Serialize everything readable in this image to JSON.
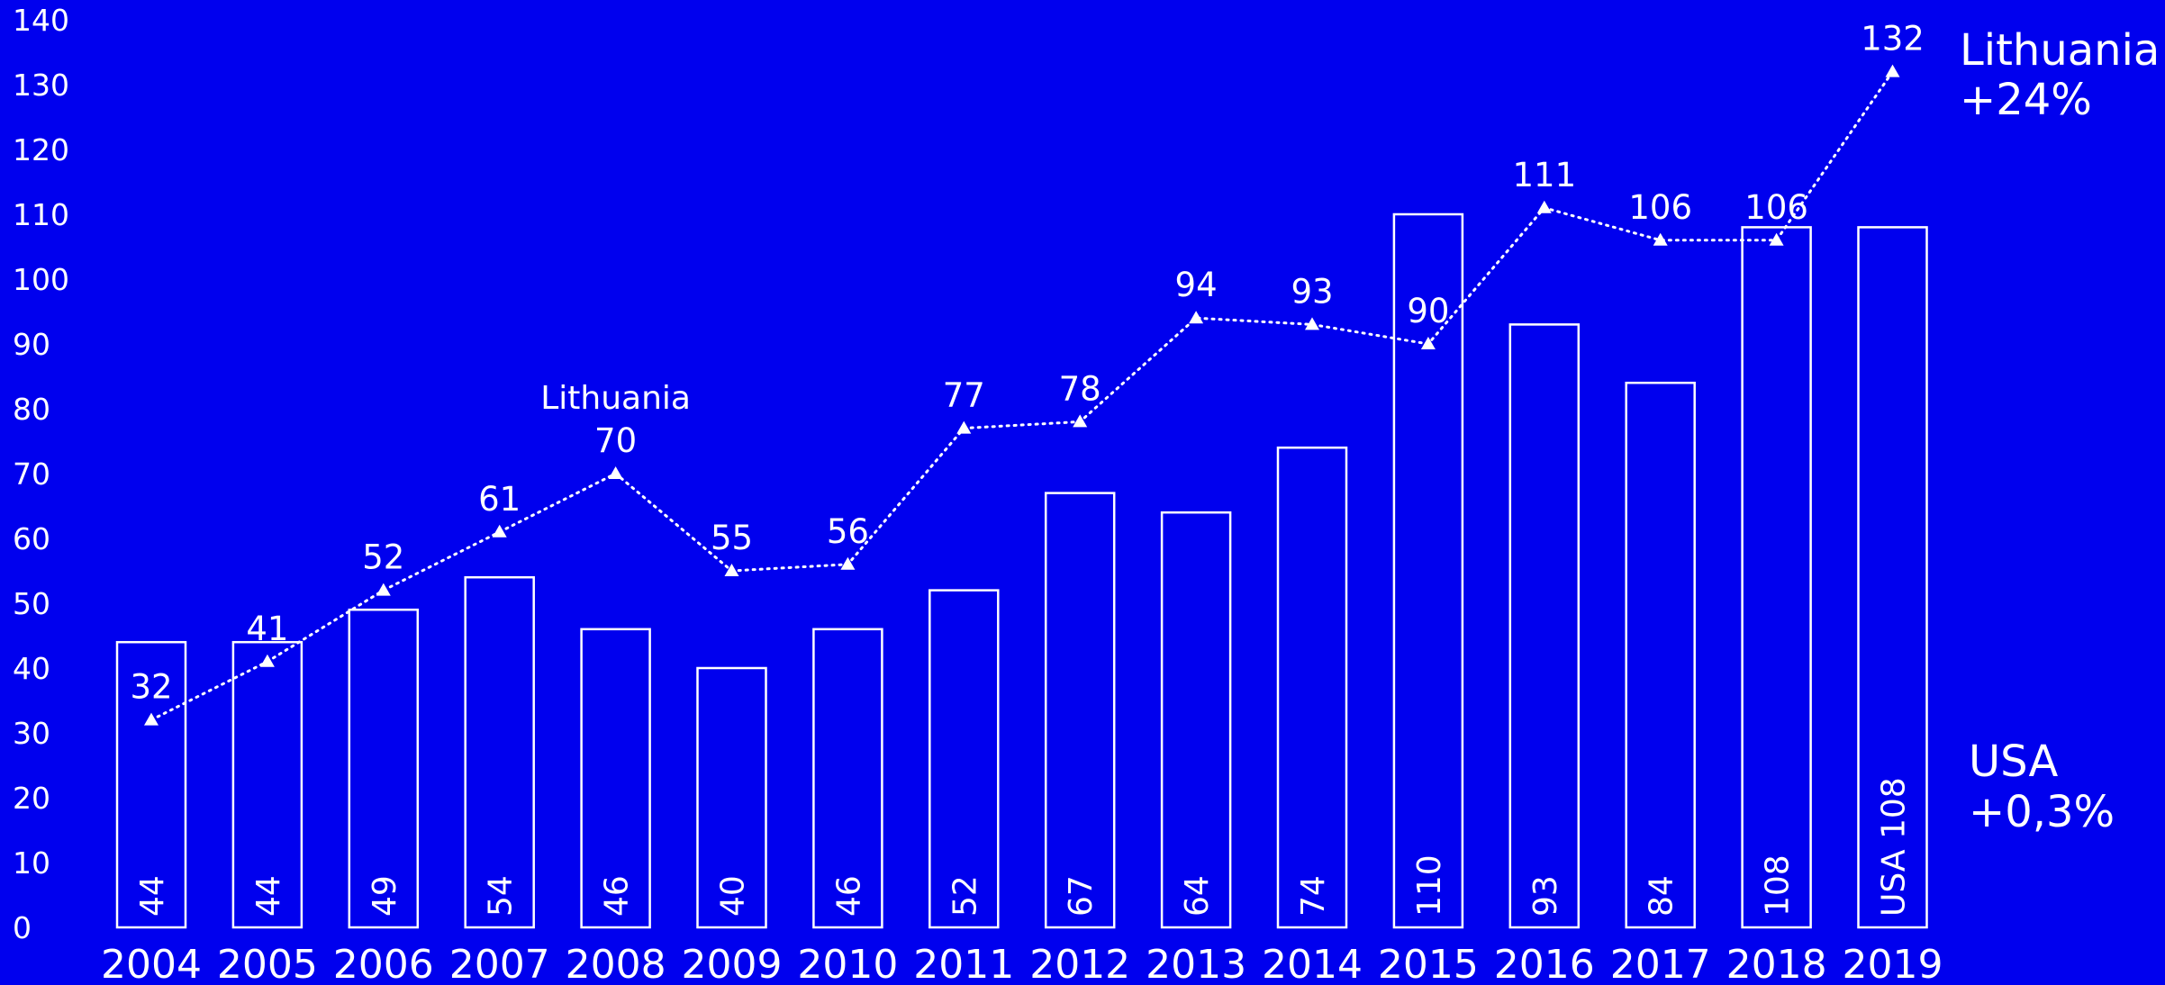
{
  "colors": {
    "background": "#0000EE",
    "foreground": "#FFFFFF"
  },
  "chart_data": {
    "type": "bar",
    "categories": [
      "2004",
      "2005",
      "2006",
      "2007",
      "2008",
      "2009",
      "2010",
      "2011",
      "2012",
      "2013",
      "2014",
      "2015",
      "2016",
      "2017",
      "2018",
      "2019"
    ],
    "ylim": [
      0,
      140
    ],
    "yticks": [
      0,
      10,
      20,
      30,
      40,
      50,
      60,
      70,
      80,
      90,
      100,
      110,
      120,
      130,
      140
    ],
    "grid": false,
    "series": [
      {
        "kind": "bar",
        "values": [
          44,
          44,
          49,
          54,
          46,
          40,
          46,
          52,
          67,
          64,
          74,
          110,
          93,
          84,
          108,
          108
        ],
        "data_labels": [
          "44",
          "44",
          "49",
          "54",
          "46",
          "40",
          "46",
          "52",
          "67",
          "64",
          "74",
          "110",
          "93",
          "84",
          "108",
          "USA 108"
        ]
      },
      {
        "kind": "line",
        "marker": "triangle",
        "line_style": "dotted",
        "values": [
          32,
          41,
          52,
          61,
          70,
          55,
          56,
          77,
          78,
          94,
          93,
          90,
          111,
          106,
          106,
          132
        ],
        "data_labels": [
          "32",
          "41",
          "52",
          "61",
          "70",
          "55",
          "56",
          "77",
          "78",
          "94",
          "93",
          "90",
          "111",
          "106",
          "106",
          "132"
        ]
      }
    ],
    "annotations": [
      {
        "text": "Lithuania",
        "category": "2008"
      }
    ],
    "legend": [
      {
        "line1": "Lithuania",
        "line2": "+24%",
        "placement": "top-right"
      },
      {
        "line1": "USA",
        "line2": "+0,3%",
        "placement": "bottom-right"
      }
    ]
  }
}
